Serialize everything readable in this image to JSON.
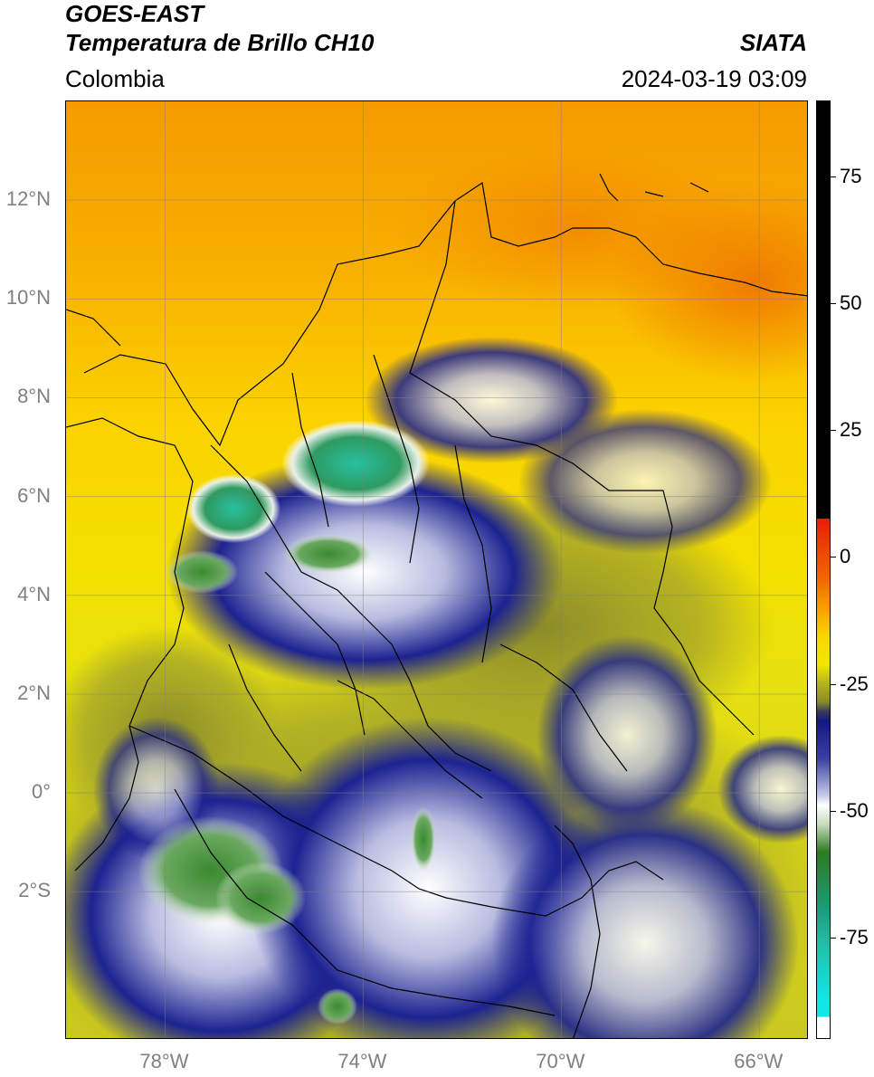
{
  "header": {
    "title_line1": "GOES-EAST",
    "title_line2": "Temperatura de Brillo CH10",
    "region": "Colombia",
    "brand": "SIATA",
    "datetime": "2024-03-19 03:09"
  },
  "map": {
    "lat_labels": [
      "12°N",
      "10°N",
      "8°N",
      "6°N",
      "4°N",
      "2°N",
      "0°",
      "2°S"
    ],
    "lon_labels": [
      "78°W",
      "74°W",
      "70°W",
      "66°W"
    ],
    "extent": {
      "lon_min": -80,
      "lon_max": -65,
      "lat_min": -5,
      "lat_max": 14
    },
    "gridlines": true
  },
  "colorbar": {
    "tick_labels": [
      "75",
      "50",
      "25",
      "0",
      "-25",
      "-50",
      "-75"
    ],
    "tick_values": [
      75,
      50,
      25,
      0,
      -25,
      -50,
      -75
    ],
    "range": [
      -95,
      90
    ],
    "colors": {
      "black_above": "#000000",
      "red": "#e81d0b",
      "orange": "#f8a000",
      "yellow": "#f8e800",
      "olive": "#9a9a20",
      "navy": "#14187e",
      "white": "#ffffff",
      "green": "#2e7a22",
      "teal": "#22c0a8",
      "cyan": "#10e8e8"
    }
  }
}
